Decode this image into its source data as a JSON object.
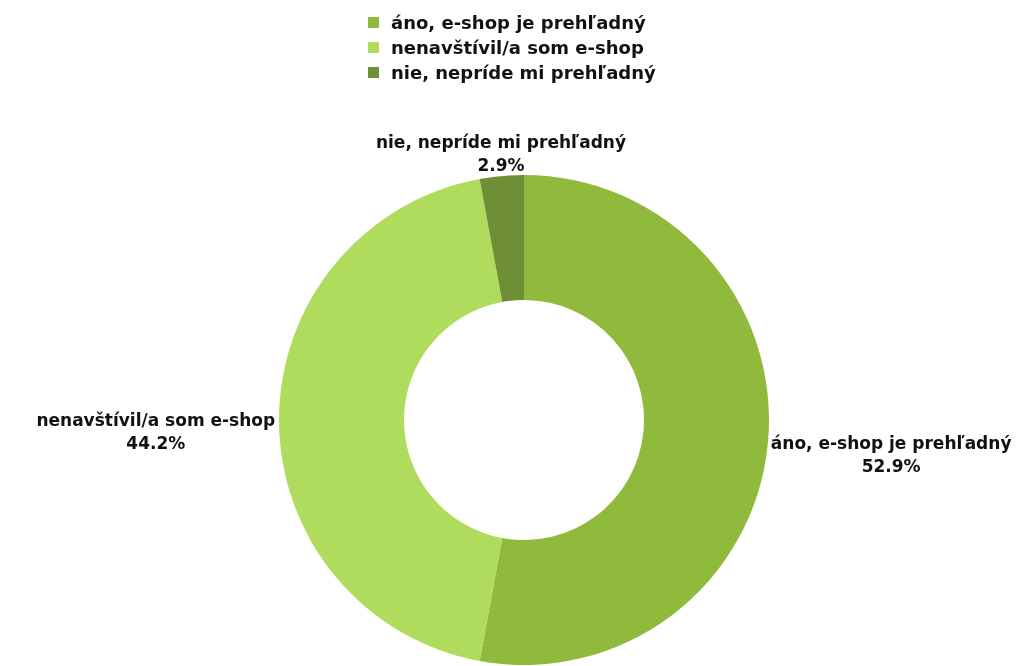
{
  "chart_data": {
    "type": "donut",
    "categories": [
      "áno, e-shop je prehľadný",
      "nenavštívil/a som e-shop",
      "nie, nepríde mi prehľadný"
    ],
    "values": [
      52.9,
      44.2,
      2.9
    ],
    "colors": [
      "#8fba3c",
      "#b0dc5e",
      "#6e8f36"
    ],
    "value_labels": [
      "52.9%",
      "44.2%",
      "2.9%"
    ],
    "legend": "top"
  }
}
